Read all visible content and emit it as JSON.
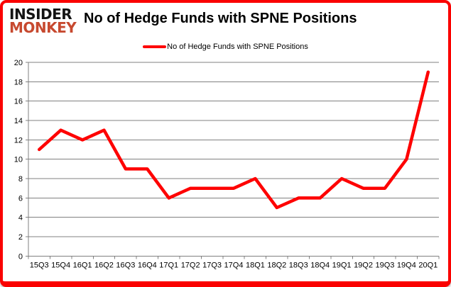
{
  "logo": {
    "line1": "INSIDER",
    "line2": "MONKEY"
  },
  "header": {
    "title": "No of Hedge Funds with SPNE Positions"
  },
  "legend": {
    "label": "No of Hedge Funds with SPNE Positions"
  },
  "colors": {
    "line": "#fe0000",
    "border": "#fa0100",
    "logo_primary": "#141414",
    "logo_accent": "#c7492f",
    "gridline": "#808080",
    "axis_text": "#000000",
    "background": "#ffffff"
  },
  "chart_data": {
    "type": "line",
    "title": "No of Hedge Funds with SPNE Positions",
    "categories": [
      "15Q3",
      "15Q4",
      "16Q1",
      "16Q2",
      "16Q3",
      "16Q4",
      "17Q1",
      "17Q2",
      "17Q3",
      "17Q4",
      "18Q1",
      "18Q2",
      "18Q3",
      "18Q4",
      "19Q1",
      "19Q2",
      "19Q3",
      "19Q4",
      "20Q1"
    ],
    "series": [
      {
        "name": "No of Hedge Funds with SPNE Positions",
        "color": "#fe0000",
        "values": [
          11,
          13,
          12,
          13,
          9,
          9,
          6,
          7,
          7,
          7,
          8,
          5,
          6,
          6,
          8,
          7,
          7,
          10,
          19
        ]
      }
    ],
    "xlabel": "",
    "ylabel": "",
    "ylim": [
      0,
      20
    ],
    "ytick_step": 2,
    "grid": true,
    "legend_position": "top-center"
  }
}
